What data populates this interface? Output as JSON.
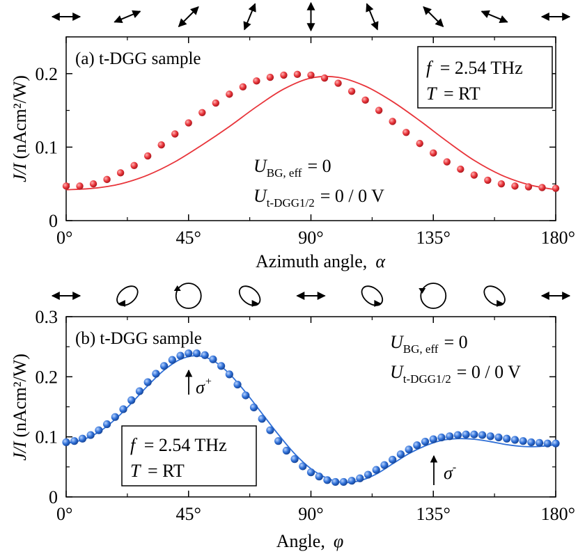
{
  "chart_data": [
    {
      "panel": "a",
      "type": "scatter",
      "title": "(a) t-DGG sample",
      "xlabel": "Azimuth angle,",
      "xlabel_symbol": "α",
      "ylabel_italic": "J/I",
      "ylabel": "(nAcm²/W)",
      "xlim": [
        0,
        180
      ],
      "ylim": [
        0,
        0.25
      ],
      "xticks": [
        0,
        45,
        90,
        135,
        180
      ],
      "xtick_labels": [
        "0°",
        "45°",
        "90°",
        "135°",
        "180°"
      ],
      "yticks": [
        0,
        0.1,
        0.2
      ],
      "ytick_labels": [
        "0",
        "0.1",
        "0.2"
      ],
      "color": "#e8343a",
      "info_box": {
        "f_symbol": "f",
        "f_value": "= 2.54 THz",
        "T_symbol": "T",
        "T_value": "= RT"
      },
      "annotations": [
        {
          "U": "U",
          "sub": "BG, eff",
          "rest": "= 0"
        },
        {
          "U": "U",
          "sub": "t-DGG1/2",
          "rest": "= 0 / 0 V"
        }
      ],
      "polarization_arrows_deg": [
        0,
        22.5,
        45,
        67.5,
        90,
        112.5,
        135,
        157.5,
        180
      ],
      "series": [
        {
          "kind": "points",
          "x": [
            0,
            5,
            10,
            15,
            20,
            25,
            30,
            35,
            40,
            45,
            50,
            55,
            60,
            65,
            70,
            75,
            80,
            85,
            90,
            95,
            100,
            105,
            110,
            115,
            120,
            125,
            130,
            135,
            140,
            145,
            150,
            155,
            160,
            165,
            170,
            175,
            180
          ],
          "y": [
            0.047,
            0.047,
            0.05,
            0.056,
            0.065,
            0.075,
            0.088,
            0.103,
            0.118,
            0.133,
            0.147,
            0.16,
            0.172,
            0.182,
            0.19,
            0.195,
            0.198,
            0.199,
            0.198,
            0.194,
            0.187,
            0.176,
            0.164,
            0.15,
            0.135,
            0.12,
            0.105,
            0.092,
            0.08,
            0.07,
            0.062,
            0.055,
            0.05,
            0.047,
            0.046,
            0.045,
            0.044
          ]
        },
        {
          "kind": "fit",
          "x": [
            0,
            10,
            20,
            30,
            40,
            50,
            60,
            70,
            80,
            90,
            100,
            110,
            120,
            130,
            140,
            150,
            160,
            170,
            180
          ],
          "y": [
            0.042,
            0.044,
            0.05,
            0.062,
            0.08,
            0.103,
            0.128,
            0.155,
            0.179,
            0.194,
            0.195,
            0.183,
            0.162,
            0.136,
            0.108,
            0.082,
            0.062,
            0.049,
            0.042
          ]
        }
      ]
    },
    {
      "panel": "b",
      "type": "scatter",
      "title": "(b) t-DGG sample",
      "xlabel": "Angle,",
      "xlabel_symbol": "φ",
      "ylabel_italic": "J/I",
      "ylabel": "(nAcm²/W)",
      "xlim": [
        0,
        180
      ],
      "ylim": [
        0,
        0.3
      ],
      "xticks": [
        0,
        45,
        90,
        135,
        180
      ],
      "xtick_labels": [
        "0°",
        "45°",
        "90°",
        "135°",
        "180°"
      ],
      "yticks": [
        0,
        0.1,
        0.2,
        0.3
      ],
      "ytick_labels": [
        "0",
        "0.1",
        "0.2",
        "0.3"
      ],
      "color": "#2f6fd6",
      "info_box": {
        "f_symbol": "f",
        "f_value": "= 2.54 THz",
        "T_symbol": "T",
        "T_value": "= RT"
      },
      "annotations": [
        {
          "U": "U",
          "sub": "BG, eff",
          "rest": "= 0"
        },
        {
          "U": "U",
          "sub": "t-DGG1/2",
          "rest": "= 0 / 0 V"
        }
      ],
      "markers": [
        {
          "label": "σ",
          "sup": "+",
          "x": 45
        },
        {
          "label": "σ",
          "sup": "-",
          "x": 135
        }
      ],
      "polarization_icons": [
        "linear",
        "ellipse-cw",
        "circle-cw",
        "ellipse-ccw",
        "linear",
        "ellipse-ccw",
        "circle-ccw",
        "ellipse-ccw",
        "linear"
      ],
      "series": [
        {
          "kind": "points",
          "x": [
            0,
            3,
            6,
            9,
            12,
            15,
            18,
            21,
            24,
            27,
            30,
            33,
            36,
            39,
            42,
            45,
            48,
            51,
            54,
            57,
            60,
            63,
            66,
            69,
            72,
            75,
            78,
            81,
            84,
            87,
            90,
            93,
            96,
            99,
            102,
            105,
            108,
            111,
            114,
            117,
            120,
            123,
            126,
            129,
            132,
            135,
            138,
            141,
            144,
            147,
            150,
            153,
            156,
            159,
            162,
            165,
            168,
            171,
            174,
            177,
            180
          ],
          "y": [
            0.091,
            0.093,
            0.097,
            0.103,
            0.111,
            0.121,
            0.133,
            0.146,
            0.161,
            0.176,
            0.191,
            0.205,
            0.218,
            0.228,
            0.235,
            0.239,
            0.239,
            0.236,
            0.229,
            0.218,
            0.204,
            0.187,
            0.169,
            0.149,
            0.13,
            0.111,
            0.093,
            0.077,
            0.063,
            0.051,
            0.041,
            0.034,
            0.028,
            0.025,
            0.025,
            0.027,
            0.031,
            0.037,
            0.045,
            0.053,
            0.062,
            0.071,
            0.079,
            0.086,
            0.092,
            0.096,
            0.099,
            0.101,
            0.103,
            0.104,
            0.104,
            0.103,
            0.101,
            0.099,
            0.097,
            0.095,
            0.093,
            0.091,
            0.09,
            0.089,
            0.089
          ]
        },
        {
          "kind": "fit",
          "x": [
            0,
            6,
            12,
            18,
            24,
            30,
            36,
            42,
            48,
            54,
            60,
            66,
            72,
            78,
            84,
            90,
            96,
            102,
            108,
            114,
            120,
            126,
            132,
            138,
            144,
            150,
            156,
            162,
            168,
            174,
            180
          ],
          "y": [
            0.089,
            0.095,
            0.108,
            0.129,
            0.156,
            0.185,
            0.211,
            0.229,
            0.235,
            0.227,
            0.205,
            0.174,
            0.139,
            0.104,
            0.072,
            0.047,
            0.031,
            0.024,
            0.027,
            0.038,
            0.055,
            0.072,
            0.085,
            0.094,
            0.097,
            0.096,
            0.092,
            0.087,
            0.084,
            0.084,
            0.087
          ]
        }
      ]
    }
  ]
}
